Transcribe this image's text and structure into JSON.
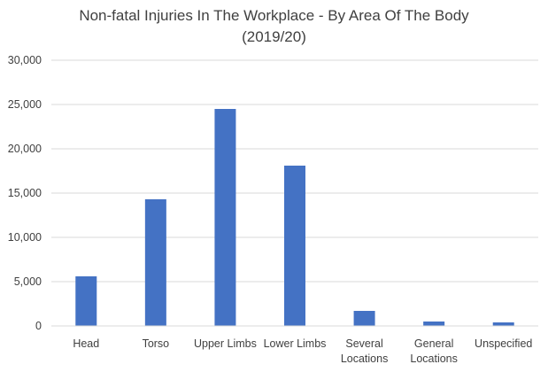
{
  "chart_data": {
    "type": "bar",
    "title_line1": "Non-fatal Injuries In The Workplace - By Area Of The Body",
    "title_line2": "(2019/20)",
    "xlabel": "",
    "ylabel": "",
    "categories": [
      [
        "Head"
      ],
      [
        "Torso"
      ],
      [
        "Upper Limbs"
      ],
      [
        "Lower Limbs"
      ],
      [
        "Several",
        "Locations"
      ],
      [
        "General",
        "Locations"
      ],
      [
        "Unspecified"
      ]
    ],
    "values": [
      5600,
      14300,
      24500,
      18100,
      1700,
      500,
      400
    ],
    "ylim": [
      0,
      30000
    ],
    "yticks": [
      0,
      5000,
      10000,
      15000,
      20000,
      25000,
      30000
    ],
    "ytick_labels": [
      "0",
      "5,000",
      "10,000",
      "15,000",
      "20,000",
      "25,000",
      "30,000"
    ],
    "grid": true,
    "legend": "none",
    "bar_color": "#4472C4",
    "grid_color": "#D9D9D9"
  }
}
